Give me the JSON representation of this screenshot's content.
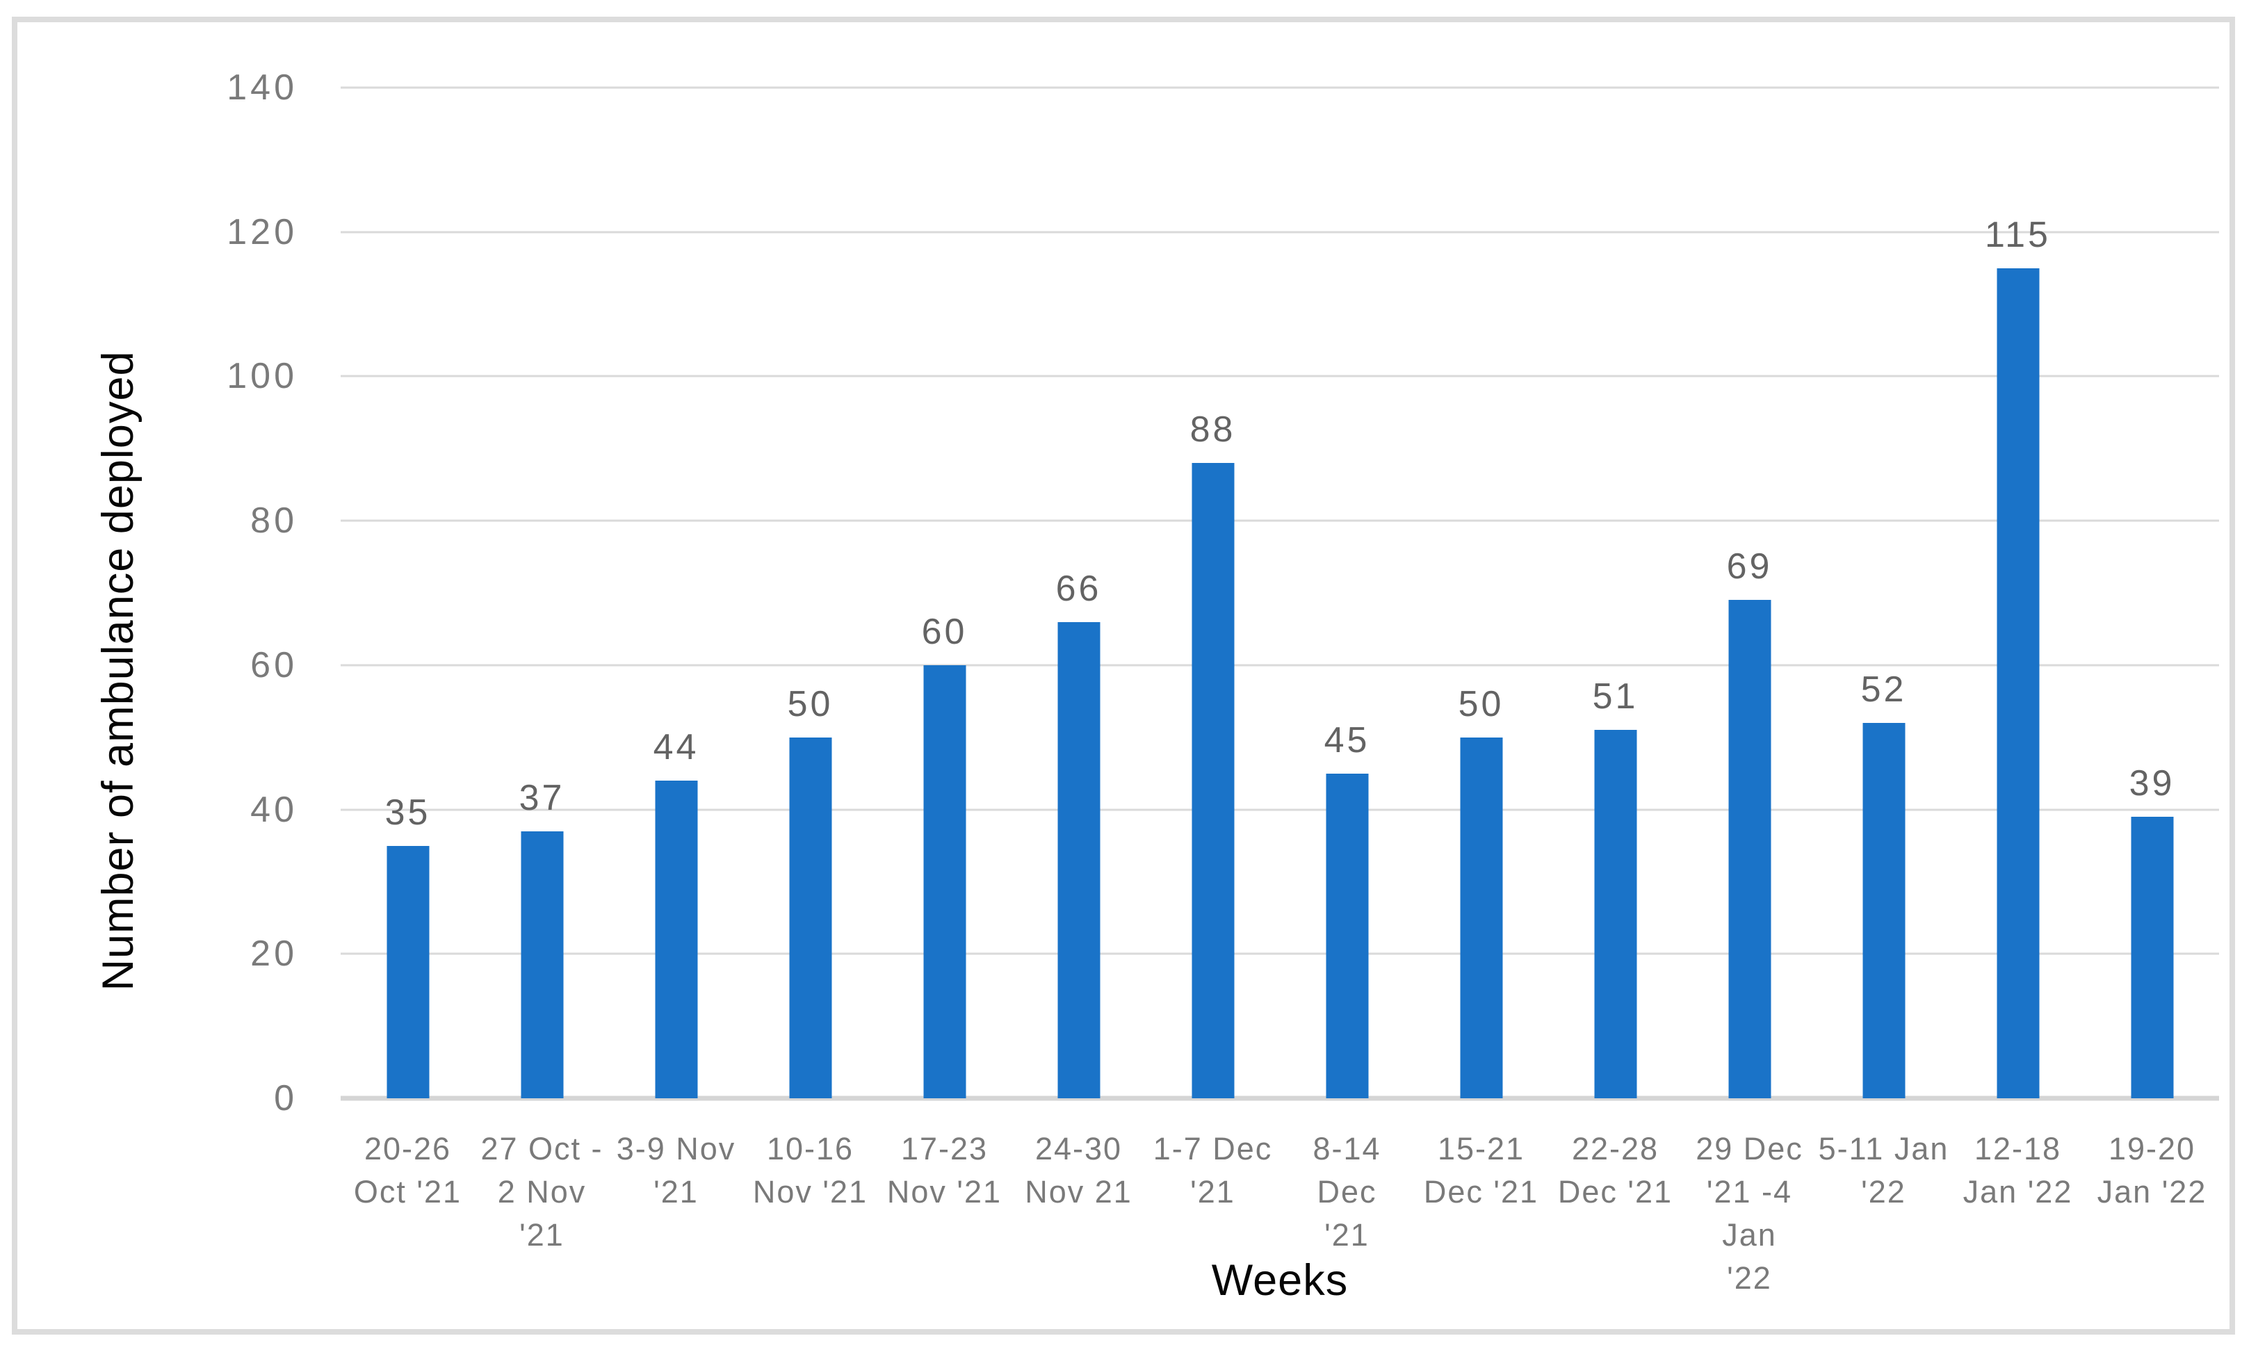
{
  "chart_data": {
    "type": "bar",
    "title": "",
    "xlabel": "Weeks",
    "ylabel": "Number of ambulance deployed",
    "ylim": [
      0,
      140
    ],
    "ytick_step": 20,
    "yticks": [
      0,
      20,
      40,
      60,
      80,
      100,
      120,
      140
    ],
    "grid": true,
    "legend": false,
    "categories": [
      "20-26 Oct '21",
      "27 Oct - 2 Nov '21",
      "3-9 Nov '21",
      "10-16 Nov '21",
      "17-23 Nov '21",
      "24-30 Nov 21",
      "1-7 Dec '21",
      "8-14 Dec '21",
      "15-21 Dec '21",
      "22-28 Dec '21",
      "29 Dec '21 -4 Jan '22",
      "5-11 Jan '22",
      "12-18 Jan '22",
      "19-20 Jan '22"
    ],
    "categories_display": [
      "20-26\nOct '21",
      "27 Oct -\n2 Nov '21",
      "3-9 Nov\n'21",
      "10-16\nNov '21",
      "17-23\nNov '21",
      "24-30\nNov 21",
      "1-7 Dec\n'21",
      "8-14 Dec\n'21",
      "15-21\nDec '21",
      "22-28\nDec '21",
      "29 Dec\n'21 -4 Jan\n'22",
      "5-11 Jan\n'22",
      "12-18\nJan '22",
      "19-20\nJan '22"
    ],
    "values": [
      35,
      37,
      44,
      50,
      60,
      66,
      88,
      45,
      50,
      51,
      69,
      52,
      115,
      39
    ],
    "colors": {
      "bar": "#1a73c8",
      "grid": "#dadada",
      "axisline": "#d5d5d5",
      "frame": "#dcdcdc",
      "ticktext": "#7a7a7a",
      "datatext": "#636363",
      "titletext": "#050505"
    }
  }
}
